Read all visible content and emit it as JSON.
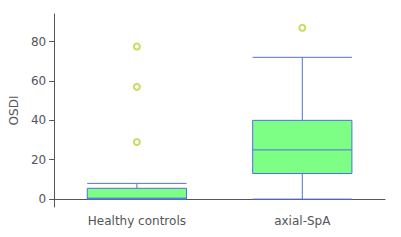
{
  "chart_data": {
    "type": "boxplot",
    "categories": [
      "Healthy controls",
      "axial-SpA"
    ],
    "ylabel": "OSDI",
    "ylim": [
      -4,
      94
    ],
    "yticks": [
      0,
      20,
      40,
      60,
      80
    ],
    "grid": false,
    "color": "#7dff85",
    "boxes": [
      {
        "q1": 0.0,
        "median": 0.5,
        "q3": 5.5,
        "whisker_low": null,
        "whisker_high": 8.0,
        "outliers": [
          29.0,
          57.0,
          77.5
        ]
      },
      {
        "q1": 13.0,
        "median": 25.0,
        "q3": 40.0,
        "whisker_low": 0.0,
        "whisker_high": 72.0,
        "outliers": [
          87.0
        ]
      }
    ]
  }
}
